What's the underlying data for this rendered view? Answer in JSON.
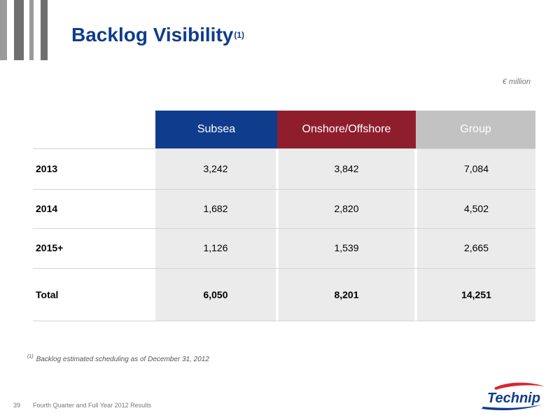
{
  "title": {
    "text": "Backlog Visibility",
    "sup": "(1)"
  },
  "unit_label": "€ million",
  "table": {
    "headers": [
      "Subsea",
      "Onshore/Offshore",
      "Group"
    ],
    "header_colors": [
      "#0f3c8c",
      "#8f1e2d",
      "#c2c2c2"
    ],
    "rows": [
      {
        "label": "2013",
        "values": [
          "3,242",
          "3,842",
          "7,084"
        ]
      },
      {
        "label": "2014",
        "values": [
          "1,682",
          "2,820",
          "4,502"
        ]
      },
      {
        "label": "2015+",
        "values": [
          "1,126",
          "1,539",
          "2,665"
        ]
      },
      {
        "label": "Total",
        "values": [
          "6,050",
          "8,201",
          "14,251"
        ]
      }
    ]
  },
  "footnote": {
    "marker": "(1)",
    "text": "Backlog estimated scheduling as of December 31, 2012"
  },
  "footer": {
    "page_number": "39",
    "text": "Fourth Quarter and Full Year 2012 Results"
  },
  "logo": {
    "text": "Technip",
    "colors": {
      "primary": "#0f3c8c",
      "accent": "#d8262e"
    }
  }
}
